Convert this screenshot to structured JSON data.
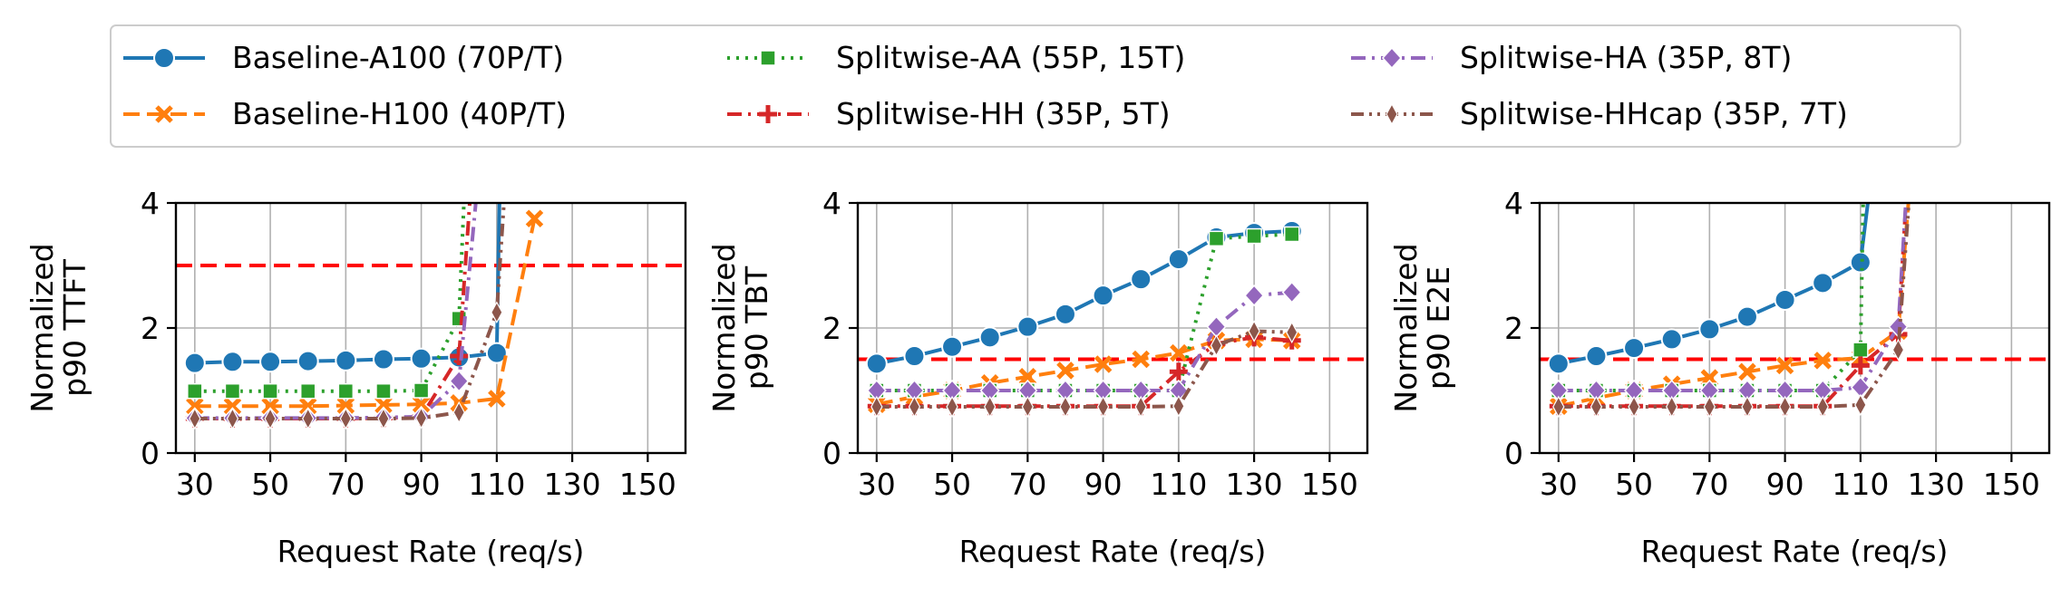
{
  "colors": {
    "blue": "#1f77b4",
    "orange": "#ff7f0e",
    "green": "#2ca02c",
    "red": "#d62728",
    "purple": "#9467bd",
    "brown": "#8c564b",
    "slo": "#ff0000",
    "grid": "#b0b0b0"
  },
  "legend": {
    "placement": "top, 3 columns",
    "items": [
      {
        "label": "Baseline-A100 (70P/T)",
        "color": "#1f77b4",
        "marker": "circle",
        "dash": "solid"
      },
      {
        "label": "Baseline-H100 (40P/T)",
        "color": "#ff7f0e",
        "marker": "x",
        "dash": "dashed"
      },
      {
        "label": "Splitwise-AA (55P, 15T)",
        "color": "#2ca02c",
        "marker": "square",
        "dash": "dotted"
      },
      {
        "label": "Splitwise-HH (35P, 5T)",
        "color": "#d62728",
        "marker": "plus",
        "dash": "dashdot"
      },
      {
        "label": "Splitwise-HA (35P, 8T)",
        "color": "#9467bd",
        "marker": "diamond",
        "dash": "dashdot"
      },
      {
        "label": "Splitwise-HHcap (35P, 7T)",
        "color": "#8c564b",
        "marker": "thin-diamond",
        "dash": "dashdotdot"
      }
    ]
  },
  "chart_data": [
    {
      "type": "line",
      "xlabel": "Request Rate (req/s)",
      "ylabel_lines": [
        "Normalized",
        "p90 TTFT"
      ],
      "xlim": [
        25,
        160
      ],
      "ylim": [
        0,
        4
      ],
      "xticks": [
        30,
        50,
        70,
        90,
        110,
        130,
        150
      ],
      "yticks": [
        0,
        2,
        4
      ],
      "grid": true,
      "slo_line": 3,
      "series": [
        {
          "name": "Baseline-A100 (70P/T)",
          "x": [
            30,
            40,
            50,
            60,
            70,
            80,
            90,
            100,
            110,
            111
          ],
          "y": [
            1.44,
            1.46,
            1.46,
            1.47,
            1.48,
            1.5,
            1.51,
            1.53,
            1.6,
            5
          ]
        },
        {
          "name": "Baseline-H100 (40P/T)",
          "x": [
            30,
            40,
            50,
            60,
            70,
            80,
            90,
            100,
            110,
            120
          ],
          "y": [
            0.75,
            0.75,
            0.75,
            0.75,
            0.76,
            0.77,
            0.78,
            0.8,
            0.87,
            3.75
          ]
        },
        {
          "name": "Splitwise-AA (55P, 15T)",
          "x": [
            30,
            40,
            50,
            60,
            70,
            80,
            90,
            100,
            102
          ],
          "y": [
            0.99,
            0.99,
            0.99,
            0.99,
            0.99,
            0.99,
            1.0,
            2.15,
            5
          ]
        },
        {
          "name": "Splitwise-HH (35P, 5T)",
          "x": [
            30,
            40,
            50,
            60,
            70,
            80,
            90,
            100,
            104
          ],
          "y": [
            0.55,
            0.55,
            0.55,
            0.55,
            0.55,
            0.56,
            0.58,
            1.55,
            5
          ]
        },
        {
          "name": "Splitwise-HA (35P, 8T)",
          "x": [
            30,
            40,
            50,
            60,
            70,
            80,
            90,
            100,
            106
          ],
          "y": [
            0.56,
            0.56,
            0.56,
            0.56,
            0.56,
            0.57,
            0.58,
            1.15,
            5
          ]
        },
        {
          "name": "Splitwise-HHcap (35P, 7T)",
          "x": [
            30,
            40,
            50,
            60,
            70,
            80,
            90,
            100,
            110,
            113
          ],
          "y": [
            0.55,
            0.55,
            0.55,
            0.55,
            0.55,
            0.55,
            0.56,
            0.65,
            2.25,
            5
          ]
        }
      ]
    },
    {
      "type": "line",
      "xlabel": "Request Rate (req/s)",
      "ylabel_lines": [
        "Normalized",
        "p90 TBT"
      ],
      "xlim": [
        25,
        160
      ],
      "ylim": [
        0,
        4
      ],
      "xticks": [
        30,
        50,
        70,
        90,
        110,
        130,
        150
      ],
      "yticks": [
        0,
        2,
        4
      ],
      "grid": true,
      "slo_line": 1.5,
      "series": [
        {
          "name": "Baseline-A100 (70P/T)",
          "x": [
            30,
            40,
            50,
            60,
            70,
            80,
            90,
            100,
            110,
            120,
            130,
            140
          ],
          "y": [
            1.43,
            1.55,
            1.7,
            1.85,
            2.02,
            2.22,
            2.52,
            2.78,
            3.1,
            3.45,
            3.52,
            3.55
          ]
        },
        {
          "name": "Baseline-H100 (40P/T)",
          "x": [
            30,
            40,
            50,
            60,
            70,
            80,
            90,
            100,
            110,
            120,
            130,
            140
          ],
          "y": [
            0.78,
            0.9,
            1.0,
            1.12,
            1.22,
            1.32,
            1.42,
            1.5,
            1.6,
            1.8,
            1.82,
            1.8
          ]
        },
        {
          "name": "Splitwise-AA (55P, 15T)",
          "x": [
            30,
            40,
            50,
            60,
            70,
            80,
            90,
            100,
            110,
            120,
            130,
            140
          ],
          "y": [
            1.0,
            1.0,
            1.0,
            1.0,
            1.0,
            1.0,
            1.0,
            1.0,
            1.0,
            3.43,
            3.47,
            3.5
          ]
        },
        {
          "name": "Splitwise-HH (35P, 5T)",
          "x": [
            30,
            40,
            50,
            60,
            70,
            80,
            90,
            100,
            110,
            120,
            130,
            140
          ],
          "y": [
            0.75,
            0.75,
            0.75,
            0.75,
            0.75,
            0.75,
            0.75,
            0.75,
            1.3,
            1.75,
            1.85,
            1.8
          ]
        },
        {
          "name": "Splitwise-HA (35P, 8T)",
          "x": [
            30,
            40,
            50,
            60,
            70,
            80,
            90,
            100,
            110,
            120,
            130,
            140
          ],
          "y": [
            1.0,
            1.0,
            1.0,
            1.0,
            1.0,
            1.0,
            1.0,
            1.0,
            1.0,
            2.02,
            2.52,
            2.57
          ]
        },
        {
          "name": "Splitwise-HHcap (35P, 7T)",
          "x": [
            30,
            40,
            50,
            60,
            70,
            80,
            90,
            100,
            110,
            120,
            130,
            140
          ],
          "y": [
            0.74,
            0.74,
            0.74,
            0.74,
            0.74,
            0.74,
            0.74,
            0.74,
            0.75,
            1.72,
            1.95,
            1.93
          ]
        }
      ]
    },
    {
      "type": "line",
      "xlabel": "Request Rate (req/s)",
      "ylabel_lines": [
        "Normalized",
        "p90 E2E"
      ],
      "xlim": [
        25,
        160
      ],
      "ylim": [
        0,
        4
      ],
      "xticks": [
        30,
        50,
        70,
        90,
        110,
        130,
        150
      ],
      "yticks": [
        0,
        2,
        4
      ],
      "grid": true,
      "slo_line": 1.5,
      "series": [
        {
          "name": "Baseline-A100 (70P/T)",
          "x": [
            30,
            40,
            50,
            60,
            70,
            80,
            90,
            100,
            110,
            114
          ],
          "y": [
            1.43,
            1.55,
            1.68,
            1.82,
            1.98,
            2.18,
            2.45,
            2.72,
            3.05,
            5
          ]
        },
        {
          "name": "Baseline-H100 (40P/T)",
          "x": [
            30,
            40,
            50,
            60,
            70,
            80,
            90,
            100,
            110,
            120,
            124
          ],
          "y": [
            0.75,
            0.88,
            1.0,
            1.1,
            1.2,
            1.3,
            1.4,
            1.48,
            1.52,
            1.95,
            5
          ]
        },
        {
          "name": "Splitwise-AA (55P, 15T)",
          "x": [
            30,
            40,
            50,
            60,
            70,
            80,
            90,
            100,
            110,
            111
          ],
          "y": [
            1.0,
            1.0,
            1.0,
            1.0,
            1.0,
            1.0,
            1.0,
            1.0,
            1.65,
            5
          ]
        },
        {
          "name": "Splitwise-HH (35P, 5T)",
          "x": [
            30,
            40,
            50,
            60,
            70,
            80,
            90,
            100,
            110,
            120,
            123
          ],
          "y": [
            0.75,
            0.75,
            0.75,
            0.75,
            0.75,
            0.75,
            0.75,
            0.75,
            1.4,
            1.9,
            5
          ]
        },
        {
          "name": "Splitwise-HA (35P, 8T)",
          "x": [
            30,
            40,
            50,
            60,
            70,
            80,
            90,
            100,
            110,
            120,
            123
          ],
          "y": [
            1.0,
            1.0,
            1.0,
            1.0,
            1.0,
            1.0,
            1.0,
            1.0,
            1.05,
            2.02,
            5
          ]
        },
        {
          "name": "Splitwise-HHcap (35P, 7T)",
          "x": [
            30,
            40,
            50,
            60,
            70,
            80,
            90,
            100,
            110,
            120,
            124
          ],
          "y": [
            0.74,
            0.74,
            0.74,
            0.74,
            0.74,
            0.74,
            0.74,
            0.74,
            0.77,
            1.65,
            5
          ]
        }
      ]
    }
  ]
}
